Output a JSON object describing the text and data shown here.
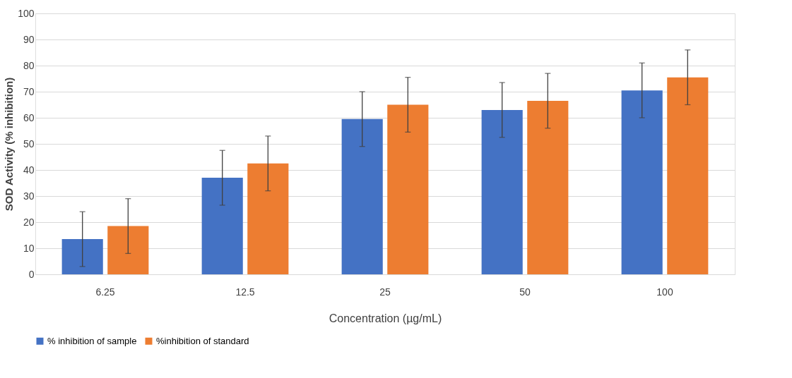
{
  "chart_data": {
    "type": "bar",
    "xlabel": "Concentration (µg/mL)",
    "ylabel": "SOD Activity   (% inhibition)",
    "categories": [
      "6.25",
      "12.5",
      "25",
      "50",
      "100"
    ],
    "series": [
      {
        "name": "% inhibition of sample",
        "color": "#4472c4",
        "values": [
          13.5,
          37,
          59.5,
          63,
          70.5
        ],
        "errors": [
          10.5,
          10.5,
          10.5,
          10.5,
          10.5
        ]
      },
      {
        "name": "%inhibition of standard",
        "color": "#ed7d31",
        "values": [
          18.5,
          42.5,
          65,
          66.5,
          75.5
        ],
        "errors": [
          10.5,
          10.5,
          10.5,
          10.5,
          10.5
        ]
      }
    ],
    "ylim": [
      0,
      100
    ],
    "yticks": [
      0,
      10,
      20,
      30,
      40,
      50,
      60,
      70,
      80,
      90,
      100
    ],
    "grid": "y",
    "legend": "bottom"
  }
}
